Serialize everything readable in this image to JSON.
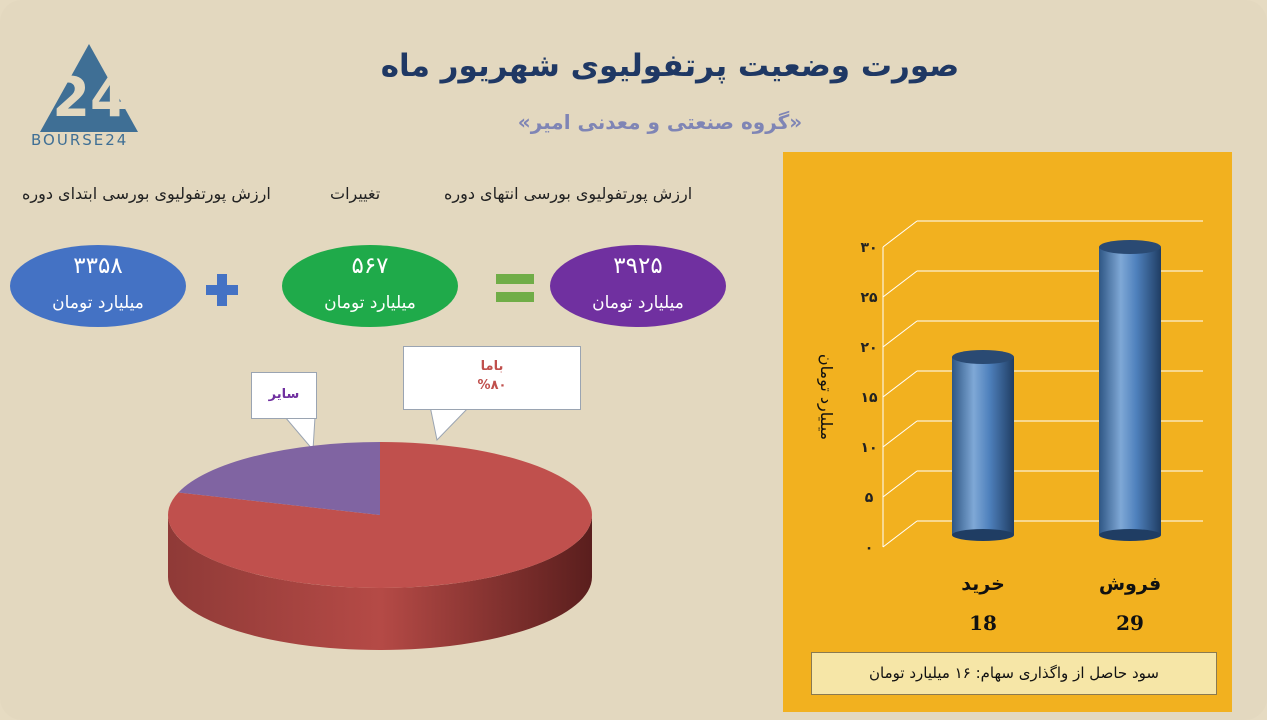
{
  "title": "صورت وضعیت پرتفولیوی شهریور ماه",
  "subtitle": "«گروه صنعتی و معدنی امیر»",
  "logo": {
    "text": "BOURSE24",
    "mark": "24"
  },
  "headers": {
    "start_value": "ارزش پورتفولیوی بورسی ابتدای دوره",
    "changes": "تغییرات",
    "end_value": "ارزش پورتفولیوی بورسی انتهای دوره"
  },
  "equation": {
    "start": {
      "value": "۳۳۵۸",
      "unit": "میلیارد تومان",
      "color": "#4472c4"
    },
    "change": {
      "value": "۵۶۷",
      "unit": "میلیارد تومان",
      "color": "#1faa4a"
    },
    "end": {
      "value": "۳۹۲۵",
      "unit": "میلیارد تومان",
      "color": "#7030a0"
    },
    "plus_icon": "plus-sign",
    "equals_icon": "equals-sign"
  },
  "chart_data": [
    {
      "type": "pie",
      "slices": [
        {
          "label": "باما",
          "value": 80,
          "value_label": "%۸۰",
          "color": "#c0504d"
        },
        {
          "label": "سایر",
          "value": 20,
          "color": "#8064a2"
        }
      ]
    },
    {
      "type": "bar",
      "categories": [
        "خرید",
        "فروش"
      ],
      "values": [
        18,
        29
      ],
      "value_labels": [
        "18",
        "29"
      ],
      "ylabel": "میلیارد تومان",
      "yticks": [
        "۰",
        "۵",
        "۱۰",
        "۱۵",
        "۲۰",
        "۲۵",
        "۳۰"
      ],
      "ylim": [
        0,
        30
      ],
      "bar_color": "#4f81bd",
      "background": "#f2b11f"
    }
  ],
  "footer": {
    "label": "سود حاصل از واگذاری سهام:",
    "value": "۱۶",
    "unit": "میلیارد تومان"
  }
}
